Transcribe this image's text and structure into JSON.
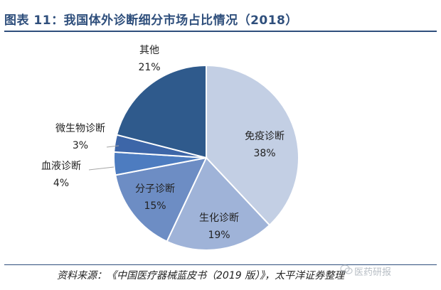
{
  "title": "图表 11：我国体外诊断细分市场占比情况（2018）",
  "source": "资料来源：《中国医疗器械蓝皮书（2019 版）》，太平洋证券整理",
  "watermark": "医药研报",
  "colors": {
    "title": "#2f4f7c"
  },
  "chart_data": {
    "type": "pie",
    "title": "",
    "slices": [
      {
        "name": "免疫诊断",
        "value": 38,
        "label": "38%",
        "color": "#c3cfe4"
      },
      {
        "name": "生化诊断",
        "value": 19,
        "label": "19%",
        "color": "#9fb3d8"
      },
      {
        "name": "分子诊断",
        "value": 15,
        "label": "15%",
        "color": "#6d8dc4"
      },
      {
        "name": "血液诊断",
        "value": 4,
        "label": "4%",
        "color": "#4d7cc0"
      },
      {
        "name": "微生物诊断",
        "value": 3,
        "label": "3%",
        "color": "#3d66a8"
      },
      {
        "name": "其他",
        "value": 21,
        "label": "21%",
        "color": "#2f5a8c"
      }
    ],
    "start": "12 o'clock",
    "direction": "clockwise"
  }
}
